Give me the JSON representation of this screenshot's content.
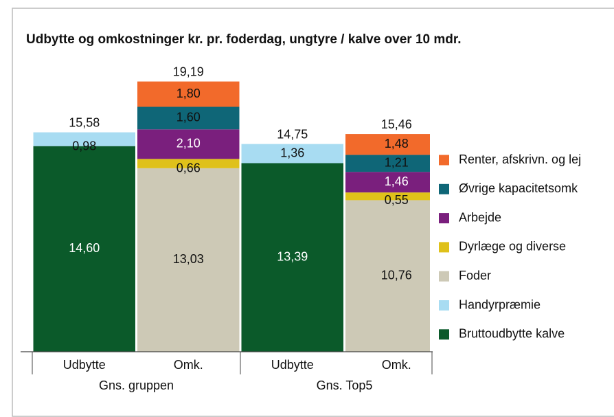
{
  "chart_data": {
    "type": "stacked_bar",
    "title": "Udbytte og omkostninger kr. pr. foderdag, ungtyre / kalve over 10 mdr.",
    "categories": [
      "Udbytte",
      "Omk.",
      "Udbytte",
      "Omk."
    ],
    "groups": [
      "Gns. gruppen",
      "Gns. Top5"
    ],
    "ylim": [
      0,
      20
    ],
    "series": [
      {
        "name": "Bruttoudbytte kalve",
        "color": "#0b5a2a",
        "values": [
          14.6,
          null,
          13.39,
          null
        ],
        "value_labels": [
          "14,60",
          null,
          "13,39",
          null
        ]
      },
      {
        "name": "Handyrpræmie",
        "color": "#a8dcf2",
        "values": [
          0.98,
          null,
          1.36,
          null
        ],
        "value_labels": [
          "0,98",
          null,
          "1,36",
          null
        ]
      },
      {
        "name": "Foder",
        "color": "#cdc9b6",
        "values": [
          null,
          13.03,
          null,
          10.76
        ],
        "value_labels": [
          null,
          "13,03",
          null,
          "10,76"
        ]
      },
      {
        "name": "Dyrlæge og diverse",
        "color": "#dfc11a",
        "values": [
          null,
          0.66,
          null,
          0.55
        ],
        "value_labels": [
          null,
          "0,66",
          null,
          "0,55"
        ]
      },
      {
        "name": "Arbejde",
        "color": "#7a1f7d",
        "values": [
          null,
          2.1,
          null,
          1.46
        ],
        "value_labels": [
          null,
          "2,10",
          null,
          "1,46"
        ]
      },
      {
        "name": "Øvrige kapacitetsomk",
        "color": "#0f6677",
        "values": [
          null,
          1.6,
          null,
          1.21
        ],
        "value_labels": [
          null,
          "1,60",
          null,
          "1,21"
        ]
      },
      {
        "name": "Renter, afskrivn. og lej",
        "color": "#f26a2b",
        "values": [
          null,
          1.8,
          null,
          1.48
        ],
        "value_labels": [
          null,
          "1,80",
          null,
          "1,48"
        ]
      }
    ],
    "totals": [
      15.58,
      19.19,
      14.75,
      15.46
    ],
    "total_labels": [
      "15,58",
      "19,19",
      "14,75",
      "15,46"
    ],
    "legend": "right"
  }
}
